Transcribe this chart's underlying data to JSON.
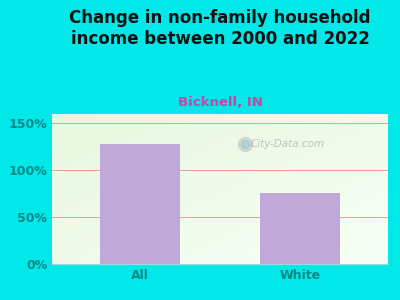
{
  "title": "Change in non-family household\nincome between 2000 and 2022",
  "subtitle": "Bicknell, IN",
  "categories": [
    "All",
    "White"
  ],
  "values": [
    128,
    76
  ],
  "bar_color": "#c0a8d8",
  "title_fontsize": 12,
  "subtitle_fontsize": 9.5,
  "subtitle_color": "#cc44aa",
  "title_color": "#111111",
  "tick_label_color": "#008888",
  "background_outer": "#00e8e8",
  "ylim": [
    0,
    160
  ],
  "yticks": [
    0,
    50,
    100,
    150
  ],
  "ytick_labels": [
    "0%",
    "50%",
    "100%",
    "150%"
  ],
  "grid_color": "#ee9999",
  "bar_width": 0.5,
  "watermark": "City-Data.com"
}
